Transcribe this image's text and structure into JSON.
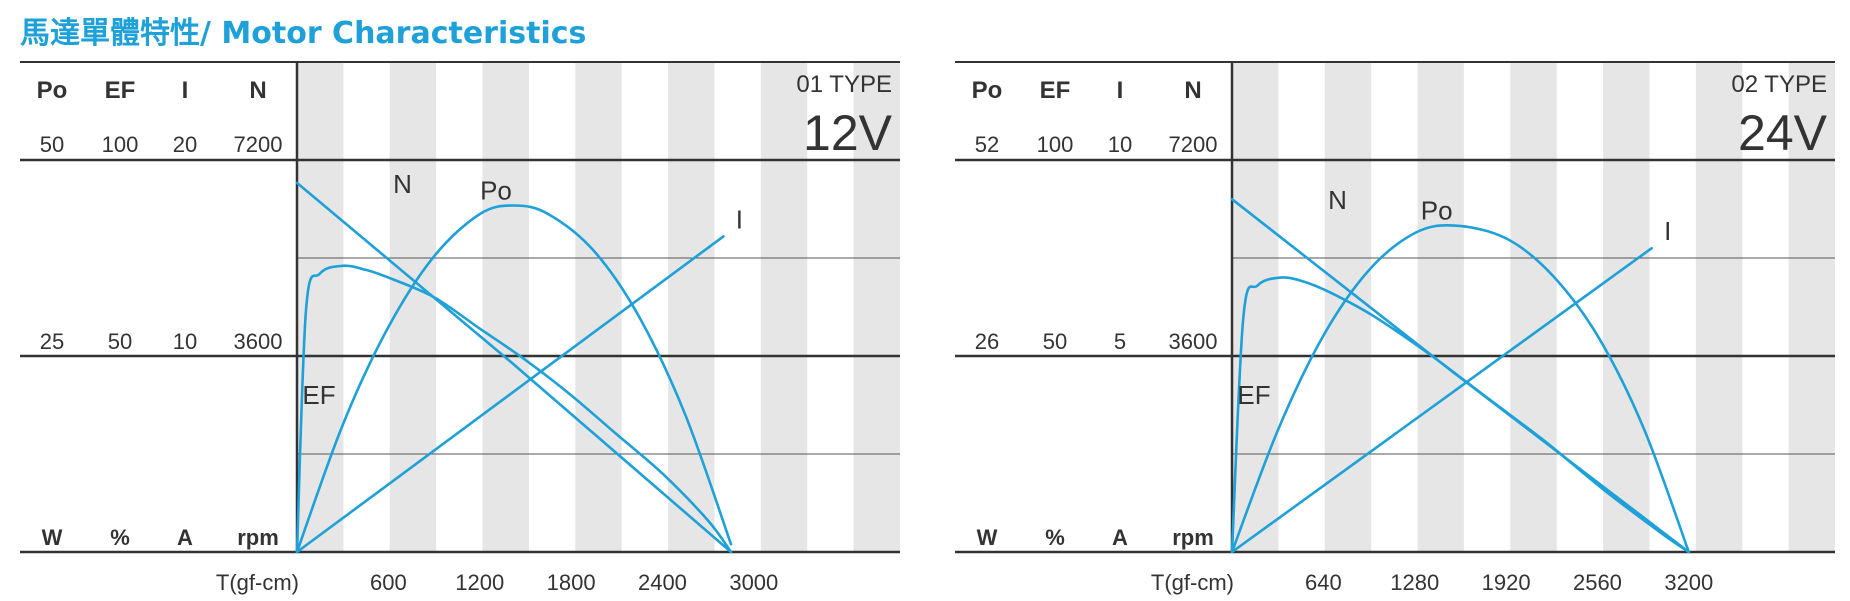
{
  "title": "馬達單體特性/ Motor Characteristics",
  "colors": {
    "curve": "#1ea0d8",
    "title": "#1ea0d8",
    "stripe": "#e6e6e6",
    "axis": "#333333",
    "grid": "#555555"
  },
  "chart_data": [
    {
      "type": "line",
      "type_label": "01 TYPE",
      "voltage": "12V",
      "xlabel": "T(gf-cm)",
      "x_ticks": [
        600,
        1200,
        1800,
        2400,
        3000
      ],
      "xlim": [
        0,
        3960
      ],
      "axes": [
        {
          "name": "Po",
          "unit": "W",
          "max": 50,
          "mid": 25,
          "max_label": "50",
          "mid_label": "25"
        },
        {
          "name": "EF",
          "unit": "%",
          "max": 100,
          "mid": 50,
          "max_label": "100",
          "mid_label": "50"
        },
        {
          "name": "I",
          "unit": "A",
          "max": 20,
          "mid": 10,
          "max_label": "20",
          "mid_label": "10"
        },
        {
          "name": "N",
          "unit": "rpm",
          "max": 7200,
          "mid": 3600,
          "max_label": "7200",
          "mid_label": "3600"
        }
      ],
      "series": [
        {
          "name": "N",
          "axis": "N",
          "x": [
            0,
            1400,
            2850
          ],
          "y": [
            6780,
            3500,
            0
          ]
        },
        {
          "name": "Po",
          "axis": "Po",
          "x": [
            0,
            300,
            600,
            900,
            1200,
            1425,
            1650,
            1950,
            2250,
            2550,
            2850
          ],
          "y": [
            0,
            16.2,
            28.7,
            37.7,
            43.1,
            44.2,
            43.1,
            38.4,
            29.9,
            17.5,
            1.0
          ]
        },
        {
          "name": "I",
          "axis": "I",
          "x": [
            0,
            2800
          ],
          "y": [
            0,
            16.1
          ]
        },
        {
          "name": "EF",
          "axis": "EF",
          "x": [
            0,
            60,
            150,
            300,
            450,
            600,
            900,
            1200,
            1500,
            1800,
            2100,
            2400,
            2700,
            2850
          ],
          "y": [
            0,
            62,
            71,
            73,
            72,
            70,
            65,
            57,
            49,
            40,
            30,
            20,
            8,
            0
          ]
        }
      ],
      "labels": {
        "N": "N",
        "Po": "Po",
        "I": "I",
        "EF": "EF"
      }
    },
    {
      "type": "line",
      "type_label": "02 TYPE",
      "voltage": "24V",
      "xlabel": "T(gf-cm)",
      "x_ticks": [
        640,
        1280,
        1920,
        2560,
        3200
      ],
      "xlim": [
        0,
        4224
      ],
      "axes": [
        {
          "name": "Po",
          "unit": "W",
          "max": 52,
          "mid": 26,
          "max_label": "52",
          "mid_label": "26"
        },
        {
          "name": "EF",
          "unit": "%",
          "max": 100,
          "mid": 50,
          "max_label": "100",
          "mid_label": "50"
        },
        {
          "name": "I",
          "unit": "A",
          "max": 10,
          "mid": 5,
          "max_label": "10",
          "mid_label": "5"
        },
        {
          "name": "N",
          "unit": "rpm",
          "max": 7200,
          "mid": 3600,
          "max_label": "7200",
          "mid_label": "3600"
        }
      ],
      "series": [
        {
          "name": "N",
          "axis": "N",
          "x": [
            0,
            1550,
            3200
          ],
          "y": [
            6480,
            3300,
            0
          ]
        },
        {
          "name": "Po",
          "axis": "Po",
          "x": [
            0,
            320,
            640,
            960,
            1280,
            1560,
            1920,
            2240,
            2560,
            2880,
            3200
          ],
          "y": [
            0,
            16.1,
            28.7,
            37.4,
            42.3,
            43.3,
            41.6,
            36.8,
            28.7,
            16.6,
            0
          ]
        },
        {
          "name": "I",
          "axis": "I",
          "x": [
            0,
            2940
          ],
          "y": [
            0,
            7.75
          ]
        },
        {
          "name": "EF",
          "axis": "EF",
          "x": [
            0,
            80,
            180,
            340,
            500,
            700,
            1000,
            1400,
            1800,
            2200,
            2600,
            3000,
            3200
          ],
          "y": [
            0,
            60,
            68,
            70,
            69,
            66,
            60,
            50,
            39,
            28,
            16,
            5,
            0
          ]
        }
      ],
      "labels": {
        "N": "N",
        "Po": "Po",
        "I": "I",
        "EF": "EF"
      }
    }
  ]
}
